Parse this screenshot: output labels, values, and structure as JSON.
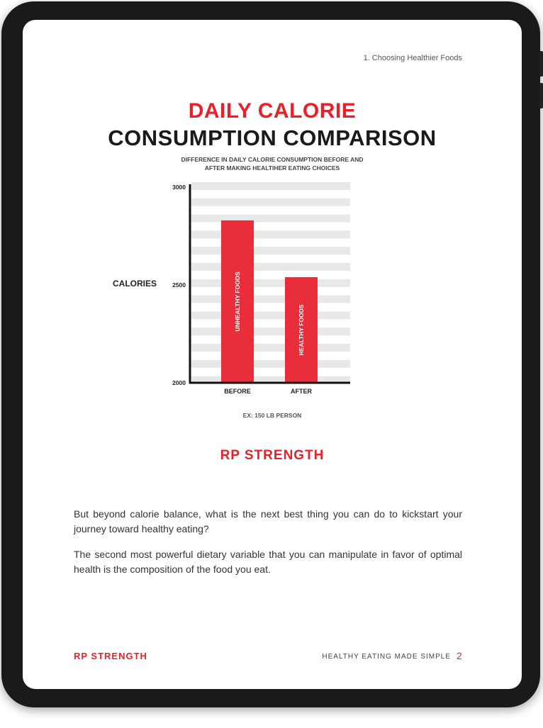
{
  "header": {
    "section": "1. Choosing Healthier Foods"
  },
  "title": {
    "line1": "DAILY CALORIE",
    "line2": "CONSUMPTION COMPARISON",
    "subtitle_line1": "DIFFERENCE IN DAILY CALORIE CONSUMPTION BEFORE AND",
    "subtitle_line2": "AFTER MAKING HEALTIHER EATING CHOICES"
  },
  "chart_data": {
    "type": "bar",
    "categories": [
      "BEFORE",
      "AFTER"
    ],
    "values": [
      2830,
      2540
    ],
    "bar_labels": [
      "UNHEALTHY FOODS",
      "HEALTHY FOODS"
    ],
    "ylabel": "CALORIES",
    "ylim": [
      2000,
      3000
    ],
    "yticks": [
      "3000",
      "2500",
      "2000"
    ],
    "note": "EX: 150 LB PERSON",
    "bar_color": "#e92d3a",
    "grid": true
  },
  "logo": "RP STRENGTH",
  "body": {
    "p1": "But beyond calorie balance, what is the next best thing you can do to kickstart your journey toward healthy eating?",
    "p2": "The second most powerful dietary variable that you can manipulate in favor of optimal health is the composition of the food you eat."
  },
  "footer": {
    "logo": "RP STRENGTH",
    "title": "HEALTHY EATING MADE SIMPLE",
    "page": "2"
  }
}
